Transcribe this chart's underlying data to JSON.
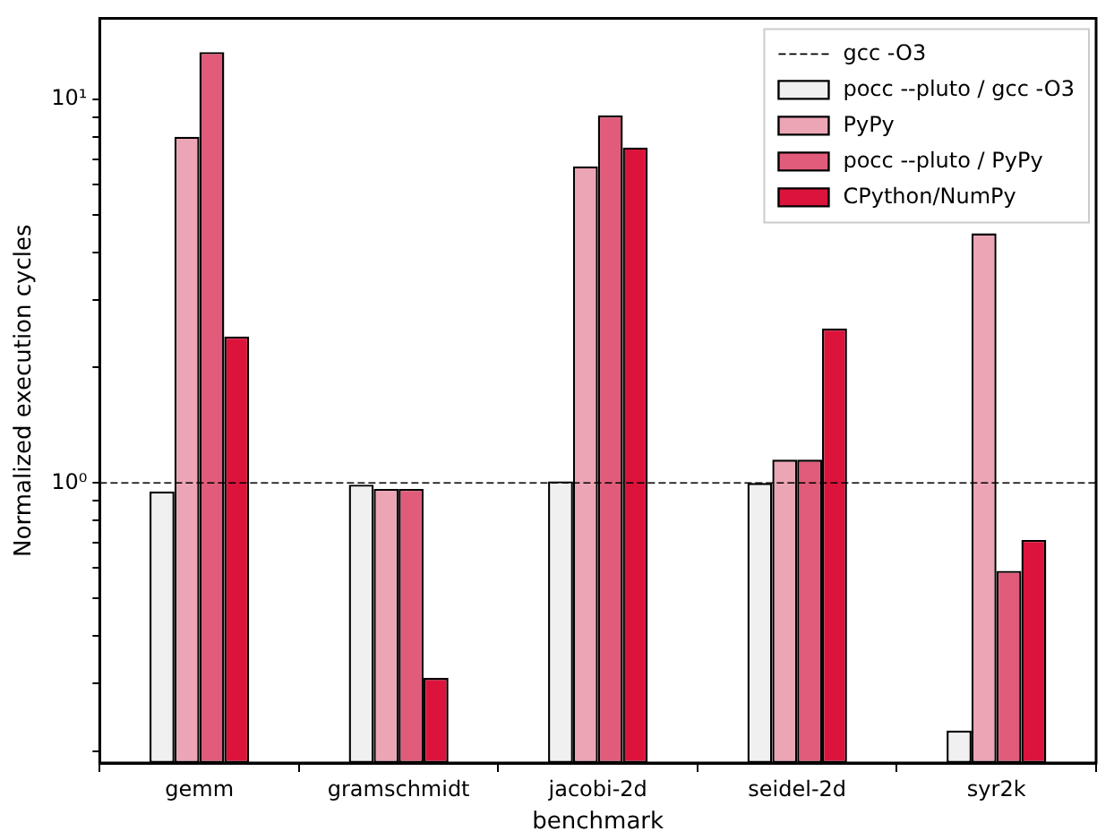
{
  "chart_data": {
    "type": "bar",
    "xlabel": "benchmark",
    "ylabel": "Normalized execution cycles",
    "categories": [
      "gemm",
      "gramschmidt",
      "jacobi-2d",
      "seidel-2d",
      "syr2k"
    ],
    "series": [
      {
        "name": "pocc --pluto / gcc -O3",
        "color": "#f0f0f0",
        "values": [
          0.95,
          0.99,
          1.01,
          1.0,
          0.226
        ]
      },
      {
        "name": "PyPy",
        "color": "#eca5b4",
        "values": [
          8.0,
          0.965,
          6.7,
          1.15,
          4.48
        ]
      },
      {
        "name": "pocc --pluto / PyPy",
        "color": "#e05c7a",
        "values": [
          13.3,
          0.965,
          9.1,
          1.15,
          0.59
        ]
      },
      {
        "name": "CPython/NumPy",
        "color": "#dc143c",
        "values": [
          2.41,
          0.31,
          7.5,
          2.53,
          0.71
        ]
      }
    ],
    "log": true,
    "ylim": [
      0.186,
      16.3
    ],
    "yticks": [
      {
        "value": 0.2,
        "label": null
      },
      {
        "value": 0.3,
        "label": null
      },
      {
        "value": 0.4,
        "label": null
      },
      {
        "value": 0.5,
        "label": null
      },
      {
        "value": 0.6,
        "label": null
      },
      {
        "value": 0.7,
        "label": null
      },
      {
        "value": 0.8,
        "label": null
      },
      {
        "value": 0.9,
        "label": null
      },
      {
        "value": 1,
        "label": "10⁰"
      },
      {
        "value": 2,
        "label": null
      },
      {
        "value": 3,
        "label": null
      },
      {
        "value": 4,
        "label": null
      },
      {
        "value": 5,
        "label": null
      },
      {
        "value": 6,
        "label": null
      },
      {
        "value": 7,
        "label": null
      },
      {
        "value": 8,
        "label": null
      },
      {
        "value": 9,
        "label": null
      },
      {
        "value": 10,
        "label": "10¹"
      }
    ],
    "ref_lines": [
      {
        "axis": "y",
        "value": 1,
        "label": "gcc -O3",
        "color": "#000000",
        "line_style": "dashed"
      }
    ],
    "legend": "top right",
    "grid": false
  }
}
